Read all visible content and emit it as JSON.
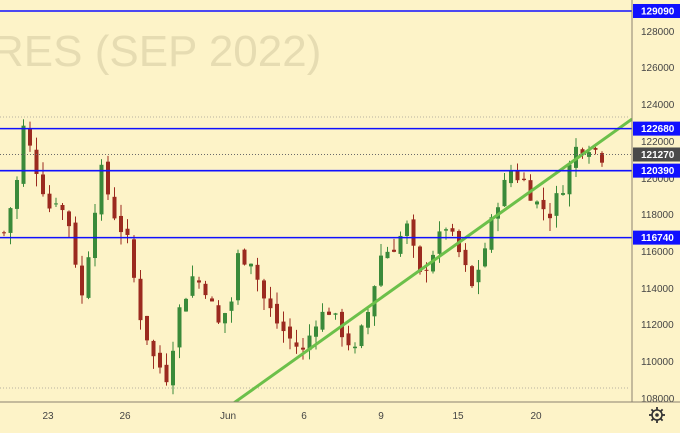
{
  "watermark": "RES (SEP 2022)",
  "colors": {
    "background": "#fdf3c8",
    "level_line": "#1010ff",
    "trend_line": "#6cc04a",
    "candle_up": "#3a8a3a",
    "candle_down": "#9b2a1f",
    "price_badge": "#1010ff",
    "current_badge": "#4a4a4a"
  },
  "chart_data": {
    "type": "candlestick",
    "x_tick_labels": [
      "23",
      "26",
      "Jun",
      "6",
      "9",
      "15",
      "20"
    ],
    "y_tick_labels": [
      "128000",
      "126000",
      "124000",
      "122000",
      "120000",
      "118000",
      "116000",
      "114000",
      "112000",
      "110000",
      "108000"
    ],
    "ylim": [
      107800,
      130000
    ],
    "levels": [
      {
        "label": "129090",
        "value": 129090
      },
      {
        "label": "122680",
        "value": 122680
      },
      {
        "label": "120390",
        "value": 120390
      },
      {
        "label": "116740",
        "value": 116740
      }
    ],
    "current_price": {
      "label": "121270",
      "value": 121270
    },
    "trend_line": {
      "from": {
        "x": 0,
        "y": 107800
      },
      "to": {
        "x": 100,
        "y": 123200
      }
    },
    "close_path_anchors": [
      [
        0,
        117000
      ],
      [
        2,
        119800
      ],
      [
        3,
        122700
      ],
      [
        5,
        120500
      ],
      [
        7,
        118400
      ],
      [
        8,
        118900
      ],
      [
        10,
        117500
      ],
      [
        12,
        113500
      ],
      [
        14,
        118500
      ],
      [
        15,
        120300
      ],
      [
        17,
        118000
      ],
      [
        19,
        116500
      ],
      [
        21,
        112500
      ],
      [
        23,
        110200
      ],
      [
        25,
        109200
      ],
      [
        27,
        112800
      ],
      [
        29,
        114600
      ],
      [
        31,
        114000
      ],
      [
        33,
        112000
      ],
      [
        35,
        113300
      ],
      [
        36,
        115700
      ],
      [
        38,
        115600
      ],
      [
        40,
        113400
      ],
      [
        42,
        112100
      ],
      [
        44,
        111200
      ],
      [
        46,
        110500
      ],
      [
        48,
        112300
      ],
      [
        50,
        112800
      ],
      [
        52,
        111600
      ],
      [
        54,
        110500
      ],
      [
        56,
        112700
      ],
      [
        58,
        115800
      ],
      [
        60,
        116300
      ],
      [
        62,
        117300
      ],
      [
        64,
        114600
      ],
      [
        66,
        116000
      ],
      [
        68,
        117400
      ],
      [
        70,
        115900
      ],
      [
        72,
        114000
      ],
      [
        74,
        116200
      ],
      [
        76,
        118800
      ],
      [
        78,
        120400
      ],
      [
        80,
        119800
      ],
      [
        82,
        118600
      ],
      [
        84,
        118100
      ],
      [
        86,
        119600
      ],
      [
        88,
        121600
      ],
      [
        90,
        121800
      ],
      [
        92,
        121200
      ]
    ]
  }
}
